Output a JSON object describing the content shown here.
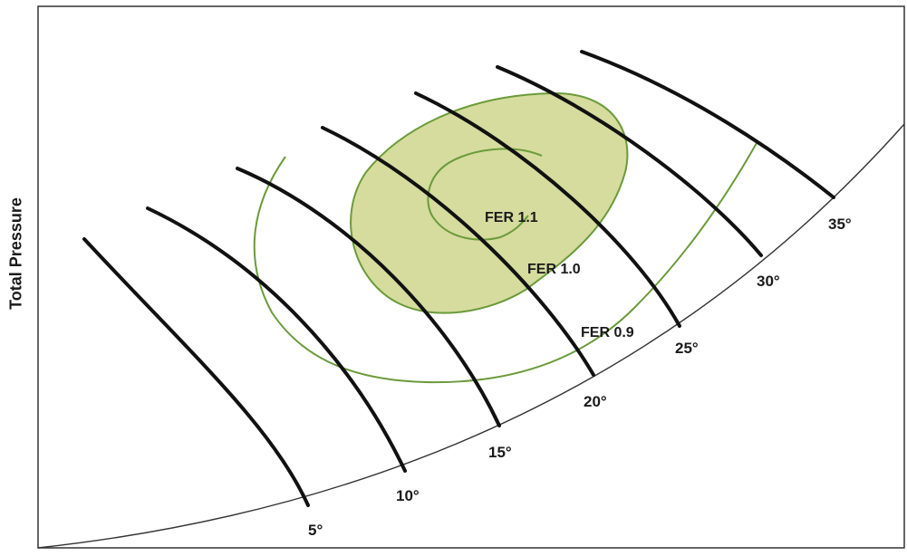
{
  "axis": {
    "ylabel": "Total Pressure"
  },
  "angle_lines": [
    {
      "label": "5°"
    },
    {
      "label": "10°"
    },
    {
      "label": "15°"
    },
    {
      "label": "20°"
    },
    {
      "label": "25°"
    },
    {
      "label": "30°"
    },
    {
      "label": "35°"
    }
  ],
  "fer_contours": [
    {
      "label": "FER 1.1"
    },
    {
      "label": "FER 1.0"
    },
    {
      "label": "FER 0.9"
    }
  ],
  "colors": {
    "line": "#111111",
    "contour": "#6b9a3a",
    "fill": "#d5dc9e"
  }
}
